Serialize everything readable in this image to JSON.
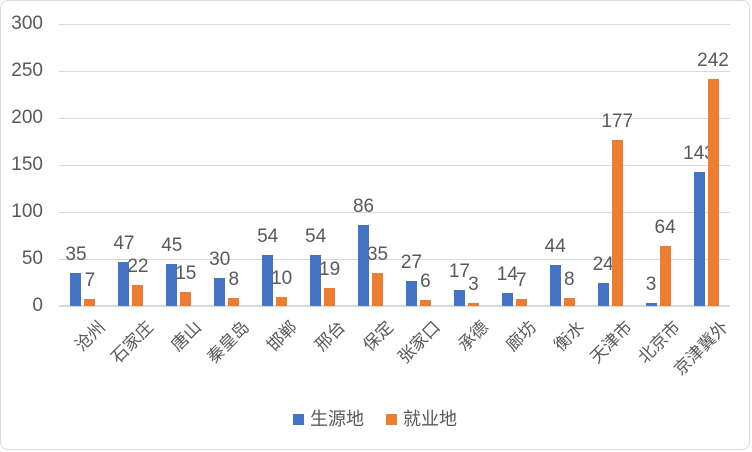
{
  "chart_data": {
    "type": "bar",
    "title": "",
    "xlabel": "",
    "ylabel": "",
    "categories": [
      "沧州",
      "石家庄",
      "唐山",
      "秦皇岛",
      "邯郸",
      "邢台",
      "保定",
      "张家口",
      "承德",
      "廊坊",
      "衡水",
      "天津市",
      "北京市",
      "京津冀外"
    ],
    "series": [
      {
        "name": "生源地",
        "color": "#4472C4",
        "values": [
          35,
          47,
          45,
          30,
          54,
          54,
          86,
          27,
          17,
          14,
          44,
          24,
          3,
          143
        ]
      },
      {
        "name": "就业地",
        "color": "#ED7D31",
        "values": [
          7,
          22,
          15,
          8,
          10,
          19,
          35,
          6,
          3,
          7,
          8,
          177,
          64,
          242
        ]
      }
    ],
    "yticks": [
      0,
      50,
      100,
      150,
      200,
      250,
      300
    ],
    "ylim": [
      0,
      300
    ],
    "grid": true,
    "data_labels": true,
    "legend_position": "bottom",
    "colors": {
      "gridline": "#d9d9d9",
      "axis_text": "#595959",
      "background": "#ffffff",
      "border": "#d9d9d9"
    }
  }
}
